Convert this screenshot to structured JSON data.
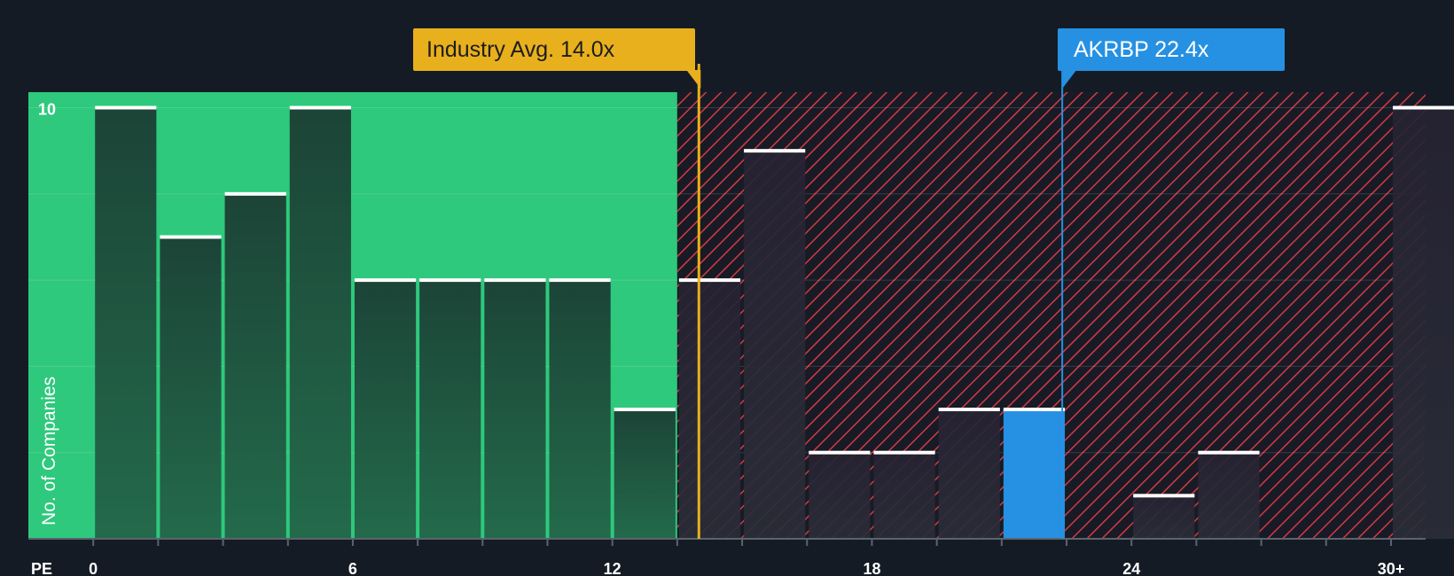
{
  "chart_data": {
    "type": "bar",
    "title": "",
    "xlabel": "PE",
    "ylabel": "No. of Companies",
    "x_tick_labels": [
      "0",
      "6",
      "12",
      "18",
      "24",
      "30+"
    ],
    "x_tick_values": [
      0,
      6,
      12,
      18,
      24,
      30
    ],
    "xlim": [
      -1.5,
      30.8
    ],
    "y_tick_labels": [
      "10"
    ],
    "y_tick_values": [
      10
    ],
    "ylim": [
      0,
      10.36
    ],
    "grid": true,
    "bins": [
      {
        "start": 0.0,
        "end": 1.5,
        "value": 10,
        "highlight": false
      },
      {
        "start": 1.5,
        "end": 3.0,
        "value": 7,
        "highlight": false
      },
      {
        "start": 3.0,
        "end": 4.5,
        "value": 8,
        "highlight": false
      },
      {
        "start": 4.5,
        "end": 6.0,
        "value": 10,
        "highlight": false
      },
      {
        "start": 6.0,
        "end": 7.5,
        "value": 6,
        "highlight": false
      },
      {
        "start": 7.5,
        "end": 9.0,
        "value": 6,
        "highlight": false
      },
      {
        "start": 9.0,
        "end": 10.5,
        "value": 6,
        "highlight": false
      },
      {
        "start": 10.5,
        "end": 12.0,
        "value": 6,
        "highlight": false
      },
      {
        "start": 12.0,
        "end": 13.5,
        "value": 3,
        "highlight": false
      },
      {
        "start": 13.5,
        "end": 15.0,
        "value": 6,
        "highlight": false
      },
      {
        "start": 15.0,
        "end": 16.5,
        "value": 9,
        "highlight": false
      },
      {
        "start": 16.5,
        "end": 18.0,
        "value": 2,
        "highlight": false
      },
      {
        "start": 18.0,
        "end": 19.5,
        "value": 2,
        "highlight": false
      },
      {
        "start": 19.5,
        "end": 21.0,
        "value": 3,
        "highlight": false
      },
      {
        "start": 21.0,
        "end": 22.5,
        "value": 3,
        "highlight": true
      },
      {
        "start": 24.0,
        "end": 25.5,
        "value": 1,
        "highlight": false
      },
      {
        "start": 25.5,
        "end": 27.0,
        "value": 2,
        "highlight": false
      },
      {
        "start": 30.0,
        "end": 31.5,
        "value": 10,
        "highlight": false
      }
    ],
    "fair_zone_end": 13.5,
    "industry_avg": {
      "label": "Industry Avg. 14.0x",
      "value": 14.0
    },
    "company": {
      "label": "AKRBP 22.4x",
      "value": 22.4
    },
    "colors": {
      "background": "#151b24",
      "fair_zone": "#2ec97c",
      "bar_dark": "#1f4d3b",
      "bar_over": "#2a2534",
      "hatch": "#d23a44",
      "highlight": "#2691e2",
      "industry": "#e9b01d"
    }
  }
}
